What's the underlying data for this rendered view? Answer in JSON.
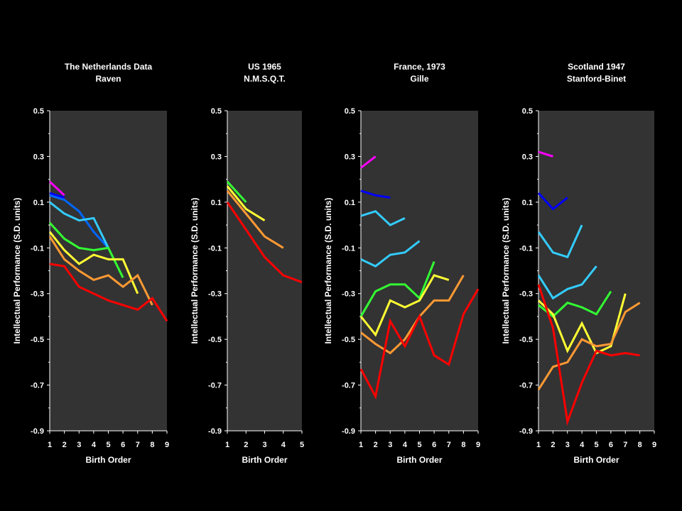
{
  "chart_data": [
    {
      "type": "line",
      "title_lines": [
        "The Netherlands Data",
        "Raven"
      ],
      "xlabel": "Birth Order",
      "ylabel": "Intellectual Performance (S.D. units)",
      "xlim": [
        1,
        9
      ],
      "ylim": [
        -0.9,
        0.5
      ],
      "xticks": [
        "1",
        "2",
        "3",
        "4",
        "5",
        "6",
        "7",
        "8",
        "9"
      ],
      "yticks": [
        "0.5",
        "0.3",
        "0.1",
        "-0.1",
        "-0.3",
        "-0.5",
        "-0.7",
        "-0.9"
      ],
      "grid": false,
      "series": [
        {
          "color": "#ff00ff",
          "x": [
            1,
            2
          ],
          "y": [
            0.19,
            0.13
          ]
        },
        {
          "color": "#0000ff",
          "x": [
            1,
            2
          ],
          "y": [
            0.14,
            0.12
          ]
        },
        {
          "color": "#0066ff",
          "x": [
            1,
            2,
            3,
            4,
            5
          ],
          "y": [
            0.13,
            0.11,
            0.06,
            -0.03,
            -0.1
          ]
        },
        {
          "color": "#33ccff",
          "x": [
            1,
            2,
            3,
            4,
            5
          ],
          "y": [
            0.1,
            0.05,
            0.02,
            0.03,
            -0.1
          ]
        },
        {
          "color": "#33ff33",
          "x": [
            1,
            2,
            3,
            4,
            5,
            6
          ],
          "y": [
            0.01,
            -0.06,
            -0.1,
            -0.11,
            -0.1,
            -0.23
          ]
        },
        {
          "color": "#ffff33",
          "x": [
            1,
            2,
            3,
            4,
            5,
            6,
            7
          ],
          "y": [
            -0.03,
            -0.11,
            -0.17,
            -0.13,
            -0.15,
            -0.15,
            -0.3
          ]
        },
        {
          "color": "#ff9933",
          "x": [
            1,
            2,
            3,
            4,
            5,
            6,
            7,
            8
          ],
          "y": [
            -0.05,
            -0.15,
            -0.2,
            -0.24,
            -0.22,
            -0.27,
            -0.22,
            -0.35
          ]
        },
        {
          "color": "#ff0000",
          "x": [
            1,
            2,
            3,
            4,
            5,
            6,
            7,
            8,
            9
          ],
          "y": [
            -0.17,
            -0.18,
            -0.27,
            -0.3,
            -0.33,
            -0.35,
            -0.37,
            -0.32,
            -0.42
          ]
        }
      ]
    },
    {
      "type": "line",
      "title_lines": [
        "US 1965",
        "N.M.S.Q.T."
      ],
      "xlabel": "Birth Order",
      "ylabel": "Intellectual Performance (S.D. units)",
      "xlim": [
        1,
        5
      ],
      "ylim": [
        -0.9,
        0.5
      ],
      "xticks": [
        "1",
        "2",
        "3",
        "4",
        "5"
      ],
      "yticks": [
        "0.5",
        "0.3",
        "0.1",
        "-0.1",
        "-0.3",
        "-0.5",
        "-0.7",
        "-0.9"
      ],
      "grid": false,
      "series": [
        {
          "color": "#33ff33",
          "x": [
            1,
            2
          ],
          "y": [
            0.19,
            0.1
          ]
        },
        {
          "color": "#ffff33",
          "x": [
            1,
            2,
            3
          ],
          "y": [
            0.17,
            0.07,
            0.02
          ]
        },
        {
          "color": "#ff9933",
          "x": [
            1,
            2,
            3,
            4
          ],
          "y": [
            0.15,
            0.05,
            -0.05,
            -0.1
          ]
        },
        {
          "color": "#ff0000",
          "x": [
            1,
            2,
            3,
            4,
            5
          ],
          "y": [
            0.1,
            -0.02,
            -0.14,
            -0.22,
            -0.25
          ]
        }
      ]
    },
    {
      "type": "line",
      "title_lines": [
        "France, 1973",
        "Gille"
      ],
      "xlabel": "Birth Order",
      "ylabel": "Intellectual Performance (S.D. units)",
      "xlim": [
        1,
        9
      ],
      "ylim": [
        -0.9,
        0.5
      ],
      "xticks": [
        "1",
        "2",
        "3",
        "4",
        "5",
        "6",
        "7",
        "8",
        "9"
      ],
      "yticks": [
        "0.5",
        "0.3",
        "0.1",
        "-0.1",
        "-0.3",
        "-0.5",
        "-0.7",
        "-0.9"
      ],
      "grid": false,
      "series": [
        {
          "color": "#ff00ff",
          "x": [
            1,
            2
          ],
          "y": [
            0.25,
            0.3
          ]
        },
        {
          "color": "#0000ff",
          "x": [
            1,
            2,
            3
          ],
          "y": [
            0.15,
            0.13,
            0.12
          ]
        },
        {
          "color": "#33ccff",
          "x": [
            1,
            2,
            3,
            4
          ],
          "y": [
            0.04,
            0.06,
            0.0,
            0.03
          ]
        },
        {
          "color": "#33ccff",
          "x": [
            1,
            2,
            3,
            4,
            5
          ],
          "y": [
            -0.15,
            -0.18,
            -0.13,
            -0.12,
            -0.07
          ]
        },
        {
          "color": "#33ff33",
          "x": [
            1,
            2,
            3,
            4,
            5,
            6
          ],
          "y": [
            -0.4,
            -0.29,
            -0.26,
            -0.26,
            -0.32,
            -0.16
          ]
        },
        {
          "color": "#ffff33",
          "x": [
            1,
            2,
            3,
            4,
            5,
            6,
            7
          ],
          "y": [
            -0.4,
            -0.48,
            -0.33,
            -0.36,
            -0.33,
            -0.22,
            -0.24
          ]
        },
        {
          "color": "#ff9933",
          "x": [
            1,
            2,
            3,
            4,
            5,
            6,
            7,
            8
          ],
          "y": [
            -0.47,
            -0.52,
            -0.56,
            -0.5,
            -0.4,
            -0.33,
            -0.33,
            -0.22
          ]
        },
        {
          "color": "#ff0000",
          "x": [
            1,
            2,
            3,
            4,
            5,
            6,
            7,
            8,
            9
          ],
          "y": [
            -0.63,
            -0.75,
            -0.42,
            -0.53,
            -0.4,
            -0.57,
            -0.61,
            -0.39,
            -0.28
          ]
        }
      ]
    },
    {
      "type": "line",
      "title_lines": [
        "Scotland 1947",
        "Stanford-Binet"
      ],
      "xlabel": "Birth Order",
      "ylabel": "Intellectual Performance (S.D. units)",
      "xlim": [
        1,
        9
      ],
      "ylim": [
        -0.9,
        0.5
      ],
      "xticks": [
        "1",
        "2",
        "3",
        "4",
        "5",
        "6",
        "7",
        "8",
        "9"
      ],
      "yticks": [
        "0.5",
        "0.3",
        "0.1",
        "-0.1",
        "-0.3",
        "-0.5",
        "-0.7",
        "-0.9"
      ],
      "grid": false,
      "series": [
        {
          "color": "#ff00ff",
          "x": [
            1,
            2
          ],
          "y": [
            0.32,
            0.3
          ]
        },
        {
          "color": "#0000ff",
          "x": [
            1,
            2,
            3
          ],
          "y": [
            0.14,
            0.07,
            0.12
          ]
        },
        {
          "color": "#33ccff",
          "x": [
            1,
            2,
            3,
            4
          ],
          "y": [
            -0.03,
            -0.12,
            -0.14,
            0.0
          ]
        },
        {
          "color": "#33ccff",
          "x": [
            1,
            2,
            3,
            4,
            5
          ],
          "y": [
            -0.22,
            -0.32,
            -0.28,
            -0.26,
            -0.18
          ]
        },
        {
          "color": "#33ff33",
          "x": [
            1,
            2,
            3,
            4,
            5,
            6
          ],
          "y": [
            -0.35,
            -0.4,
            -0.34,
            -0.36,
            -0.39,
            -0.29
          ]
        },
        {
          "color": "#ffff33",
          "x": [
            1,
            2,
            3,
            4,
            5,
            6,
            7
          ],
          "y": [
            -0.33,
            -0.39,
            -0.55,
            -0.43,
            -0.56,
            -0.53,
            -0.3
          ]
        },
        {
          "color": "#ff9933",
          "x": [
            1,
            2,
            3,
            4,
            5,
            6,
            7,
            8
          ],
          "y": [
            -0.72,
            -0.62,
            -0.6,
            -0.5,
            -0.53,
            -0.52,
            -0.38,
            -0.34
          ]
        },
        {
          "color": "#ff0000",
          "x": [
            1,
            2,
            3,
            4,
            5,
            6,
            7,
            8
          ],
          "y": [
            -0.26,
            -0.45,
            -0.86,
            -0.69,
            -0.55,
            -0.57,
            -0.56,
            -0.57
          ]
        }
      ]
    }
  ]
}
